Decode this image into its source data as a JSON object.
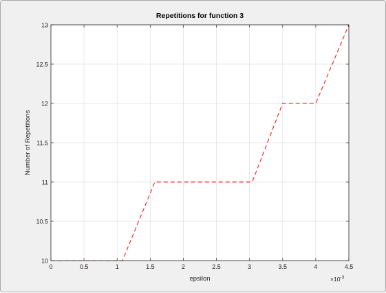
{
  "chart_data": {
    "type": "line",
    "title": "Repetitions for function 3",
    "xlabel": "epsilon",
    "ylabel": "Number of Repetitions",
    "x_exponent_base": "×10",
    "x_exponent_power": "-3",
    "xlim": [
      0,
      4.5
    ],
    "ylim": [
      10,
      13
    ],
    "xticks": [
      0,
      0.5,
      1,
      1.5,
      2,
      2.5,
      3,
      3.5,
      4,
      4.5
    ],
    "xtick_labels": [
      "0",
      "0.5",
      "1",
      "1.5",
      "2",
      "2.5",
      "3",
      "3.5",
      "4",
      "4.5"
    ],
    "yticks": [
      10,
      10.5,
      11,
      11.5,
      12,
      12.5,
      13
    ],
    "ytick_labels": [
      "10",
      "10.5",
      "11",
      "11.5",
      "12",
      "12.5",
      "13"
    ],
    "grid": true,
    "series": [
      {
        "line_style": "dashed",
        "color": "#ff0000",
        "x": [
          0,
          1.08,
          1.57,
          3.04,
          3.5,
          4.0,
          4.5
        ],
        "y": [
          10,
          10,
          11,
          11,
          12,
          12,
          13
        ]
      }
    ]
  }
}
